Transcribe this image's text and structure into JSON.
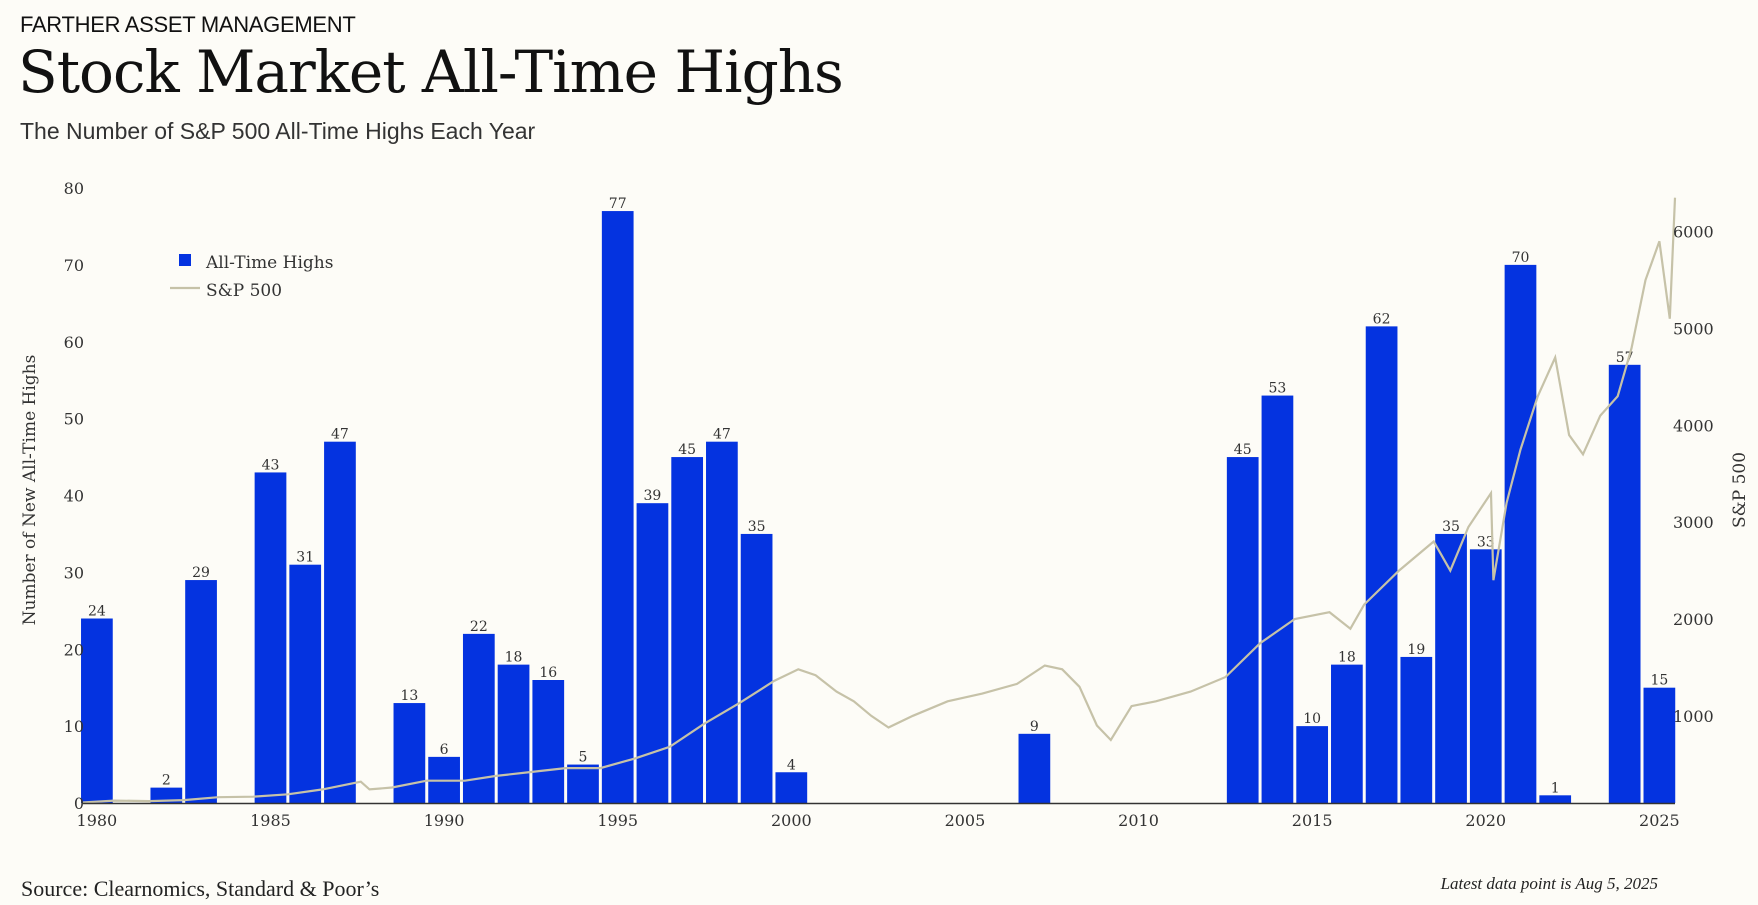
{
  "header": {
    "brand": "FARTHER ASSET MANAGEMENT",
    "title": "Stock Market All-Time Highs",
    "subtitle": "The Number of S&P 500 All-Time Highs Each Year"
  },
  "footer": {
    "source": "Source: Clearnomics, Standard & Poor’s",
    "note": "Latest data point is Aug 5, 2025"
  },
  "colors": {
    "bars": "#0433e0",
    "line": "#c6c2a8",
    "axis": "#333333"
  },
  "chart_data": {
    "type": "bar",
    "title": "Stock Market All-Time Highs",
    "subtitle": "The Number of S&P 500 All-Time Highs Each Year",
    "ylabel": "Number of New All-Time Highs",
    "y2label": "S&P 500",
    "ylim": [
      0,
      80
    ],
    "y2lim": [
      100,
      6450
    ],
    "xlim": [
      1979.6,
      2025.45
    ],
    "yticks": [
      0,
      10,
      20,
      30,
      40,
      50,
      60,
      70,
      80
    ],
    "y2ticks": [
      1000,
      2000,
      3000,
      4000,
      5000,
      6000
    ],
    "xticks": [
      1980,
      1985,
      1990,
      1995,
      2000,
      2005,
      2010,
      2015,
      2020,
      2025
    ],
    "grid": false,
    "legend_position": "top-left",
    "legend": [
      {
        "label": "All-Time Highs",
        "kind": "bar"
      },
      {
        "label": "S&P 500",
        "kind": "line"
      }
    ],
    "series": [
      {
        "name": "All-Time Highs",
        "kind": "bar",
        "axis": "left",
        "x": [
          1980,
          1982,
          1983,
          1985,
          1986,
          1987,
          1989,
          1990,
          1991,
          1992,
          1993,
          1994,
          1995,
          1996,
          1997,
          1998,
          1999,
          2000,
          2007,
          2013,
          2014,
          2015,
          2016,
          2017,
          2018,
          2019,
          2020,
          2021,
          2022,
          2024,
          2025
        ],
        "values": [
          24,
          2,
          29,
          43,
          31,
          47,
          13,
          6,
          22,
          18,
          16,
          5,
          77,
          39,
          45,
          47,
          35,
          4,
          9,
          45,
          53,
          10,
          18,
          62,
          19,
          35,
          33,
          70,
          1,
          57,
          15
        ]
      },
      {
        "name": "S&P 500",
        "kind": "line",
        "axis": "right",
        "x": [
          1979.6,
          1980.5,
          1981.5,
          1982.5,
          1983.5,
          1984.5,
          1985.5,
          1986.5,
          1987.6,
          1987.85,
          1988.5,
          1989.5,
          1990.6,
          1991.5,
          1992.5,
          1993.5,
          1994.5,
          1995.5,
          1996.5,
          1997.5,
          1998.5,
          1999.5,
          2000.2,
          2000.7,
          2001.3,
          2001.8,
          2002.3,
          2002.8,
          2003.5,
          2004.5,
          2005.5,
          2006.5,
          2007.3,
          2007.8,
          2008.3,
          2008.8,
          2009.2,
          2009.8,
          2010.5,
          2011.5,
          2012.5,
          2013.5,
          2014.5,
          2015.5,
          2016.1,
          2016.5,
          2017.5,
          2018.5,
          2018.98,
          2019.5,
          2020.15,
          2020.22,
          2020.6,
          2021.0,
          2021.5,
          2022.0,
          2022.4,
          2022.8,
          2023.3,
          2023.8,
          2024.2,
          2024.6,
          2025.0,
          2025.3,
          2025.45
        ],
        "values": [
          105,
          125,
          120,
          130,
          160,
          165,
          190,
          240,
          320,
          240,
          260,
          330,
          330,
          380,
          420,
          460,
          460,
          560,
          680,
          920,
          1130,
          1360,
          1480,
          1420,
          1250,
          1150,
          1000,
          880,
          1000,
          1150,
          1230,
          1330,
          1520,
          1480,
          1300,
          900,
          750,
          1100,
          1150,
          1250,
          1400,
          1750,
          2000,
          2070,
          1900,
          2150,
          2500,
          2800,
          2500,
          2950,
          3300,
          2400,
          3200,
          3750,
          4300,
          4700,
          3900,
          3700,
          4100,
          4300,
          4800,
          5500,
          5900,
          5100,
          6350
        ]
      }
    ]
  }
}
